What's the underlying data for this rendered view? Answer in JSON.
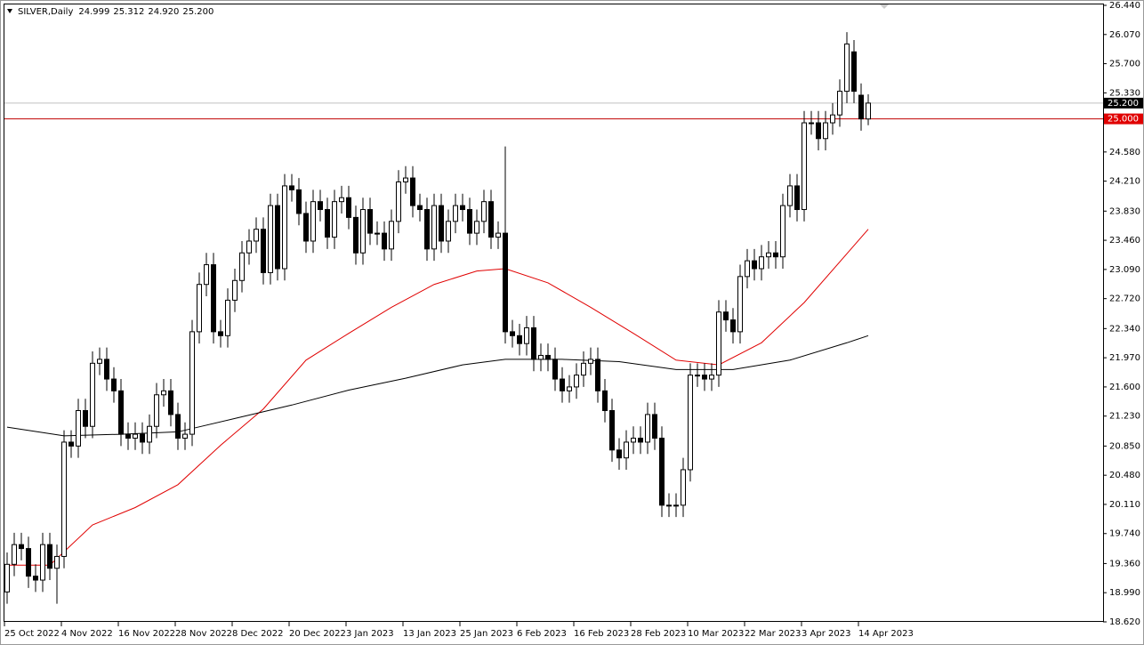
{
  "chart_data": {
    "type": "candlestick",
    "header": {
      "symbol": "SILVER,Daily",
      "open": "24.999",
      "high": "25.312",
      "low": "24.920",
      "close": "25.200"
    },
    "categories": [
      "25 Oct 2022",
      null,
      null,
      null,
      null,
      null,
      null,
      null,
      "4 Nov 2022",
      null,
      null,
      null,
      null,
      null,
      null,
      null,
      "16 Nov 2022",
      null,
      null,
      null,
      null,
      null,
      null,
      null,
      "28 Nov 2022",
      null,
      null,
      null,
      null,
      null,
      null,
      null,
      "8 Dec 2022",
      null,
      null,
      null,
      null,
      null,
      null,
      null,
      "20 Dec 2022",
      null,
      null,
      null,
      null,
      null,
      null,
      null,
      "3 Jan 2023",
      null,
      null,
      null,
      null,
      null,
      null,
      null,
      "13 Jan 2023",
      null,
      null,
      null,
      null,
      null,
      null,
      null,
      "25 Jan 2023",
      null,
      null,
      null,
      null,
      null,
      null,
      null,
      "6 Feb 2023",
      null,
      null,
      null,
      null,
      null,
      null,
      null,
      "16 Feb 2023",
      null,
      null,
      null,
      null,
      null,
      null,
      null,
      "28 Feb 2023",
      null,
      null,
      null,
      null,
      null,
      null,
      null,
      "10 Mar 2023",
      null,
      null,
      null,
      null,
      null,
      null,
      null,
      "22 Mar 2023",
      null,
      null,
      null,
      null,
      null,
      null,
      null,
      "3 Apr 2023",
      null,
      null,
      null,
      null,
      null,
      null,
      null,
      "14 Apr 2023",
      null
    ],
    "open": [
      19.0,
      19.35,
      19.6,
      19.55,
      19.2,
      19.15,
      19.6,
      19.3,
      19.45,
      20.9,
      20.85,
      21.3,
      21.1,
      21.9,
      21.95,
      21.7,
      21.55,
      21.0,
      20.95,
      21.0,
      20.9,
      21.1,
      21.5,
      21.55,
      21.25,
      20.95,
      21.0,
      22.3,
      22.9,
      23.15,
      22.3,
      22.25,
      22.7,
      22.95,
      23.3,
      23.45,
      23.6,
      23.05,
      23.9,
      23.1,
      24.15,
      24.1,
      23.8,
      23.45,
      23.95,
      23.85,
      23.5,
      23.95,
      24.0,
      23.75,
      23.3,
      23.85,
      23.55,
      23.55,
      23.35,
      23.7,
      24.2,
      24.25,
      23.9,
      23.85,
      23.35,
      23.9,
      23.45,
      23.7,
      23.9,
      23.85,
      23.55,
      23.7,
      23.95,
      23.5,
      23.55,
      22.3,
      22.25,
      22.15,
      22.35,
      21.95,
      22.0,
      21.95,
      21.7,
      21.55,
      21.6,
      21.75,
      21.9,
      21.95,
      21.55,
      21.3,
      20.8,
      20.7,
      20.9,
      20.95,
      20.9,
      21.25,
      20.95,
      20.1,
      20.1,
      20.1,
      20.55,
      21.75,
      21.75,
      21.7,
      21.75,
      22.55,
      22.45,
      22.3,
      23.0,
      23.2,
      23.1,
      23.25,
      23.3,
      23.25,
      23.9,
      24.15,
      23.85,
      24.95,
      24.95,
      24.75,
      24.95,
      25.05,
      25.35,
      25.85,
      25.3,
      24.999
    ],
    "high": [
      19.5,
      19.75,
      19.75,
      19.7,
      19.35,
      19.75,
      19.75,
      19.6,
      21.05,
      21.05,
      21.45,
      21.45,
      22.05,
      22.1,
      22.1,
      21.85,
      21.7,
      21.15,
      21.15,
      21.15,
      21.25,
      21.65,
      21.7,
      21.7,
      21.4,
      21.15,
      22.45,
      23.05,
      23.3,
      23.3,
      22.45,
      22.85,
      23.1,
      23.45,
      23.6,
      23.75,
      23.75,
      24.05,
      24.05,
      24.3,
      24.3,
      24.25,
      23.95,
      24.1,
      24.1,
      24.0,
      24.1,
      24.15,
      24.15,
      23.9,
      24.0,
      24.0,
      23.7,
      23.7,
      23.85,
      24.35,
      24.4,
      24.4,
      24.05,
      24.0,
      24.05,
      24.05,
      23.85,
      24.05,
      24.05,
      24.0,
      23.85,
      24.1,
      24.1,
      23.7,
      24.65,
      22.45,
      22.4,
      22.5,
      22.5,
      22.15,
      22.15,
      22.1,
      21.85,
      21.75,
      21.9,
      22.05,
      22.1,
      22.1,
      21.7,
      21.45,
      20.95,
      21.05,
      21.1,
      21.1,
      21.4,
      21.4,
      21.1,
      20.25,
      20.25,
      20.7,
      21.9,
      21.9,
      21.9,
      21.9,
      22.7,
      22.7,
      22.6,
      23.15,
      23.35,
      23.35,
      23.4,
      23.45,
      23.45,
      24.05,
      24.3,
      24.3,
      25.1,
      25.1,
      25.1,
      25.1,
      25.2,
      25.5,
      26.1,
      26.0,
      25.45,
      25.312
    ],
    "low": [
      18.85,
      19.2,
      19.4,
      19.05,
      19.0,
      19.0,
      19.15,
      18.85,
      19.3,
      20.7,
      20.7,
      20.95,
      20.95,
      21.75,
      21.55,
      21.4,
      20.85,
      20.8,
      20.8,
      20.75,
      20.75,
      20.95,
      21.35,
      21.1,
      20.8,
      20.8,
      20.85,
      22.15,
      22.75,
      22.15,
      22.1,
      22.1,
      22.55,
      22.8,
      23.15,
      23.3,
      22.9,
      22.9,
      22.95,
      22.95,
      23.95,
      23.65,
      23.3,
      23.3,
      23.7,
      23.35,
      23.35,
      23.8,
      23.6,
      23.15,
      23.15,
      23.4,
      23.4,
      23.2,
      23.2,
      23.55,
      24.05,
      23.75,
      23.7,
      23.2,
      23.2,
      23.3,
      23.3,
      23.55,
      23.7,
      23.4,
      23.4,
      23.55,
      23.35,
      23.35,
      22.15,
      22.1,
      22.0,
      22.0,
      21.8,
      21.8,
      21.8,
      21.55,
      21.4,
      21.4,
      21.45,
      21.6,
      21.75,
      21.4,
      21.15,
      20.65,
      20.55,
      20.55,
      20.75,
      20.75,
      20.75,
      20.8,
      19.95,
      19.95,
      19.95,
      19.95,
      20.4,
      21.6,
      21.55,
      21.55,
      21.6,
      22.3,
      22.15,
      22.15,
      22.85,
      22.95,
      22.95,
      23.1,
      23.1,
      23.1,
      23.75,
      23.7,
      23.7,
      24.8,
      24.6,
      24.6,
      24.8,
      24.9,
      25.2,
      25.2,
      24.85,
      24.92
    ],
    "close": [
      19.35,
      19.6,
      19.55,
      19.2,
      19.15,
      19.6,
      19.3,
      19.45,
      20.9,
      20.85,
      21.3,
      21.1,
      21.9,
      21.95,
      21.7,
      21.55,
      21.0,
      20.95,
      21.0,
      20.9,
      21.1,
      21.5,
      21.55,
      21.25,
      20.95,
      21.0,
      22.3,
      22.9,
      23.15,
      22.3,
      22.25,
      22.7,
      22.95,
      23.3,
      23.45,
      23.6,
      23.05,
      23.9,
      23.1,
      24.15,
      24.1,
      23.8,
      23.45,
      23.95,
      23.85,
      23.5,
      23.95,
      24.0,
      23.75,
      23.3,
      23.85,
      23.55,
      23.55,
      23.35,
      23.7,
      24.2,
      24.25,
      23.9,
      23.85,
      23.35,
      23.9,
      23.45,
      23.7,
      23.9,
      23.85,
      23.55,
      23.7,
      23.95,
      23.5,
      23.55,
      22.3,
      22.25,
      22.15,
      22.35,
      21.95,
      22.0,
      21.95,
      21.7,
      21.55,
      21.6,
      21.75,
      21.9,
      21.95,
      21.55,
      21.3,
      20.8,
      20.7,
      20.9,
      20.95,
      20.9,
      21.25,
      20.95,
      20.1,
      20.1,
      20.1,
      20.55,
      21.75,
      21.75,
      21.7,
      21.75,
      22.55,
      22.45,
      22.3,
      23.0,
      23.2,
      23.1,
      23.25,
      23.3,
      23.25,
      23.9,
      24.15,
      23.85,
      24.95,
      24.95,
      24.75,
      24.95,
      25.05,
      25.35,
      25.95,
      25.35,
      25.0,
      25.2
    ],
    "up_color": "#ffffff",
    "down_color": "#000000",
    "outline_color": "#000000",
    "lines": [
      {
        "color": "#e00000",
        "x": [
          0,
          6,
          12,
          18,
          24,
          30,
          36,
          42,
          48,
          54,
          60,
          66,
          70,
          76,
          82,
          88,
          94,
          100,
          106,
          112,
          118,
          121
        ],
        "values": [
          19.34,
          19.34,
          19.85,
          20.07,
          20.36,
          20.86,
          21.32,
          21.94,
          22.28,
          22.61,
          22.9,
          23.07,
          23.1,
          22.92,
          22.61,
          22.28,
          21.94,
          21.88,
          22.16,
          22.67,
          23.29,
          23.6
        ]
      },
      {
        "color": "#000000",
        "x": [
          0,
          8,
          16,
          24,
          32,
          40,
          48,
          56,
          64,
          70,
          78,
          86,
          94,
          102,
          110,
          118,
          121
        ],
        "values": [
          21.09,
          20.98,
          21.0,
          21.03,
          21.2,
          21.37,
          21.56,
          21.71,
          21.88,
          21.95,
          21.95,
          21.92,
          21.82,
          21.82,
          21.94,
          22.16,
          22.25
        ]
      }
    ],
    "levels": [
      {
        "value": 25.2,
        "label": "25.200",
        "color": "#c0c0c0",
        "box_color": "#000000"
      },
      {
        "value": 25.0,
        "label": "25.000",
        "color": "#c00000",
        "box_color": "#e00000"
      }
    ],
    "ylim": [
      18.62,
      26.44
    ],
    "yticks": [
      {
        "value": 18.62,
        "label": "18.620"
      },
      {
        "value": 18.99,
        "label": "18.990"
      },
      {
        "value": 19.36,
        "label": "19.360"
      },
      {
        "value": 19.74,
        "label": "19.740"
      },
      {
        "value": 20.11,
        "label": "20.110"
      },
      {
        "value": 20.48,
        "label": "20.480"
      },
      {
        "value": 20.85,
        "label": "20.850"
      },
      {
        "value": 21.23,
        "label": "21.230"
      },
      {
        "value": 21.6,
        "label": "21.600"
      },
      {
        "value": 21.97,
        "label": "21.970"
      },
      {
        "value": 22.34,
        "label": "22.340"
      },
      {
        "value": 22.72,
        "label": "22.720"
      },
      {
        "value": 23.09,
        "label": "23.090"
      },
      {
        "value": 23.46,
        "label": "23.460"
      },
      {
        "value": 23.83,
        "label": "23.830"
      },
      {
        "value": 24.21,
        "label": "24.210"
      },
      {
        "value": 24.58,
        "label": "24.580"
      },
      {
        "value": 25.33,
        "label": "25.330"
      },
      {
        "value": 25.7,
        "label": "25.700"
      },
      {
        "value": 26.07,
        "label": "26.070"
      },
      {
        "value": 26.44,
        "label": "26.440"
      }
    ]
  }
}
